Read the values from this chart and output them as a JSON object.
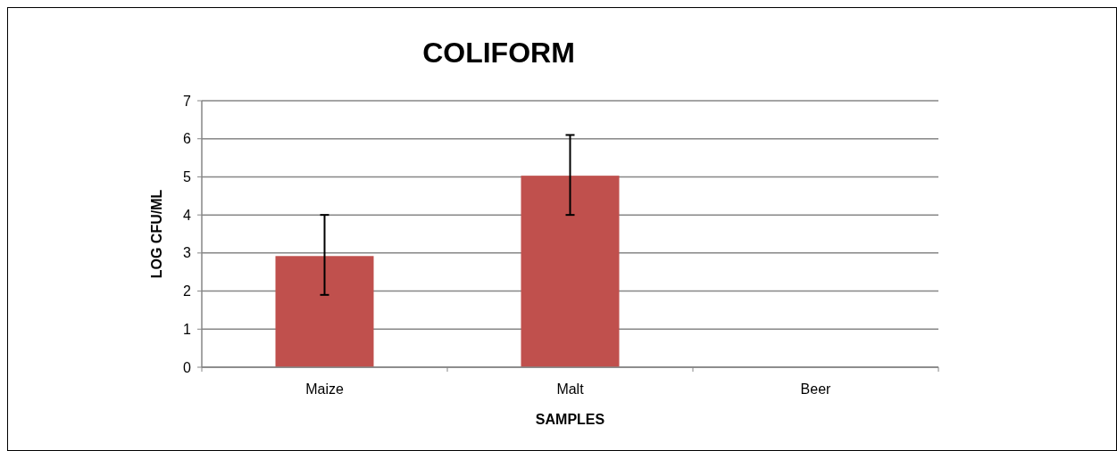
{
  "chart_data": {
    "type": "bar",
    "title": "COLIFORM",
    "xlabel": "SAMPLES",
    "ylabel": "LOG CFU/ML",
    "categories": [
      "Maize",
      "Malt",
      "Beer"
    ],
    "series": [
      {
        "color": "#c0504d",
        "values": [
          2.92,
          5.03,
          0
        ],
        "errors": [
          [
            1.9,
            4.0
          ],
          [
            4.0,
            6.1
          ],
          null
        ]
      }
    ],
    "ylim": [
      0,
      7
    ],
    "yticks": [
      0,
      1,
      2,
      3,
      4,
      5,
      6,
      7
    ],
    "grid": "y"
  }
}
